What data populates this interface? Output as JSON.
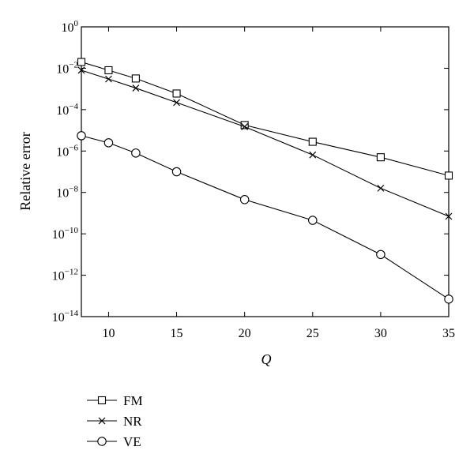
{
  "chart_data": {
    "type": "line",
    "title": "",
    "xlabel": "Q",
    "ylabel": "Relative error",
    "x": [
      8,
      10,
      12,
      15,
      20,
      25,
      30,
      35
    ],
    "xlim": [
      8,
      35
    ],
    "xticks": [
      10,
      15,
      20,
      25,
      30,
      35
    ],
    "yscale": "log",
    "ylim": [
      1e-14,
      1
    ],
    "yticks": [
      {
        "value": 1,
        "base": "10",
        "exp": "0"
      },
      {
        "value": 0.01,
        "base": "10",
        "exp": "−2"
      },
      {
        "value": 0.0001,
        "base": "10",
        "exp": "−4"
      },
      {
        "value": 1e-06,
        "base": "10",
        "exp": "−6"
      },
      {
        "value": 1e-08,
        "base": "10",
        "exp": "−8"
      },
      {
        "value": 1e-10,
        "base": "10",
        "exp": "−10"
      },
      {
        "value": 1e-12,
        "base": "10",
        "exp": "−12"
      },
      {
        "value": 1e-14,
        "base": "10",
        "exp": "−14"
      }
    ],
    "grid": false,
    "legend_position": "below",
    "series": [
      {
        "name": "FM",
        "marker": "square",
        "values": [
          0.02,
          0.008,
          0.0032,
          0.0006,
          1.8e-05,
          2.8e-06,
          5e-07,
          6.5e-08
        ]
      },
      {
        "name": "NR",
        "marker": "x",
        "values": [
          0.008,
          0.003,
          0.0011,
          0.00022,
          1.5e-05,
          6.5e-07,
          1.6e-08,
          7e-10
        ]
      },
      {
        "name": "VE",
        "marker": "circle",
        "values": [
          5.5e-06,
          2.5e-06,
          8e-07,
          1e-07,
          4.5e-09,
          4.5e-10,
          1e-11,
          7e-14
        ]
      }
    ]
  }
}
